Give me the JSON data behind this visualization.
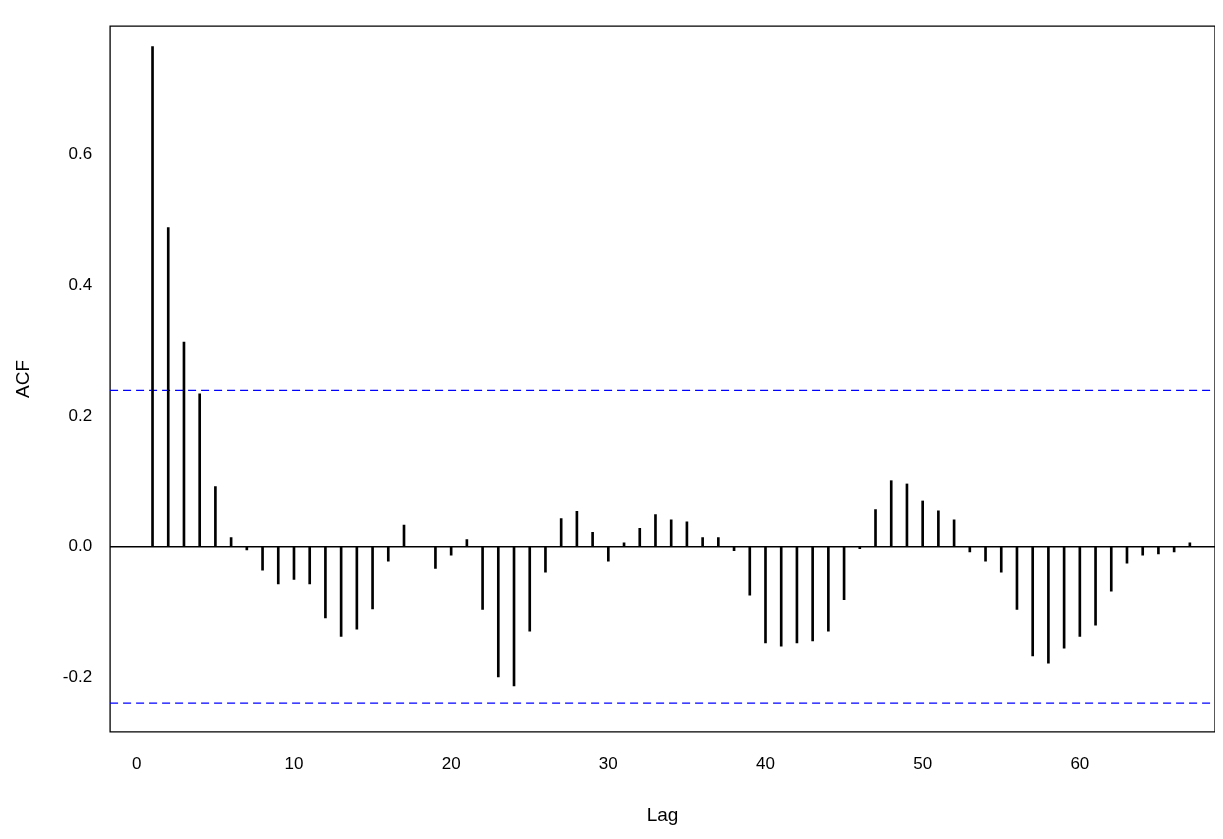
{
  "chart_data": {
    "type": "bar",
    "xlabel": "Lag",
    "ylabel": "ACF",
    "x": [
      1,
      2,
      3,
      4,
      5,
      6,
      7,
      8,
      9,
      10,
      11,
      12,
      13,
      14,
      15,
      16,
      17,
      18,
      19,
      20,
      21,
      22,
      23,
      24,
      25,
      26,
      27,
      28,
      29,
      30,
      31,
      32,
      33,
      34,
      35,
      36,
      37,
      38,
      39,
      40,
      41,
      42,
      43,
      44,
      45,
      46,
      47,
      48,
      49,
      50,
      51,
      52,
      53,
      54,
      55,
      56,
      57,
      58,
      59,
      60,
      61,
      62,
      63,
      64,
      65,
      66,
      67
    ],
    "series": [
      {
        "color": "#000000",
        "values": [
          0.765,
          0.488,
          0.313,
          0.234,
          0.092,
          0.014,
          -0.005,
          -0.036,
          -0.057,
          -0.05,
          -0.057,
          -0.109,
          -0.137,
          -0.126,
          -0.095,
          -0.022,
          0.033,
          0,
          -0.033,
          -0.013,
          0.011,
          -0.096,
          -0.199,
          -0.213,
          -0.129,
          -0.039,
          0.043,
          0.054,
          0.022,
          -0.022,
          0.006,
          0.028,
          0.049,
          0.041,
          0.038,
          0.014,
          0.014,
          -0.006,
          -0.074,
          -0.147,
          -0.152,
          -0.147,
          -0.144,
          -0.129,
          -0.081,
          -0.003,
          0.057,
          0.101,
          0.096,
          0.07,
          0.055,
          0.041,
          -0.008,
          -0.022,
          -0.039,
          -0.096,
          -0.167,
          -0.178,
          -0.155,
          -0.137,
          -0.12,
          -0.068,
          -0.025,
          -0.013,
          -0.011,
          -0.008,
          0.006
        ]
      }
    ],
    "xlim": [
      -1.7,
      68.6
    ],
    "xticks": [
      0,
      10,
      20,
      30,
      40,
      50,
      60
    ],
    "ylim": [
      -0.283,
      0.796
    ],
    "yticks": [
      -0.2,
      {
        "value": 0,
        "label": "0.0"
      },
      0.2,
      0.4,
      0.6
    ],
    "ref_lines": [
      {
        "axis": "y",
        "value": 0,
        "color": "#000000",
        "line_style": "solid"
      },
      {
        "axis": "y",
        "value": 0.239,
        "color": "#0000ff",
        "line_style": "dashed"
      },
      {
        "axis": "y",
        "value": -0.239,
        "color": "#0000ff",
        "line_style": "dashed"
      }
    ],
    "grid": false,
    "legend": false
  }
}
